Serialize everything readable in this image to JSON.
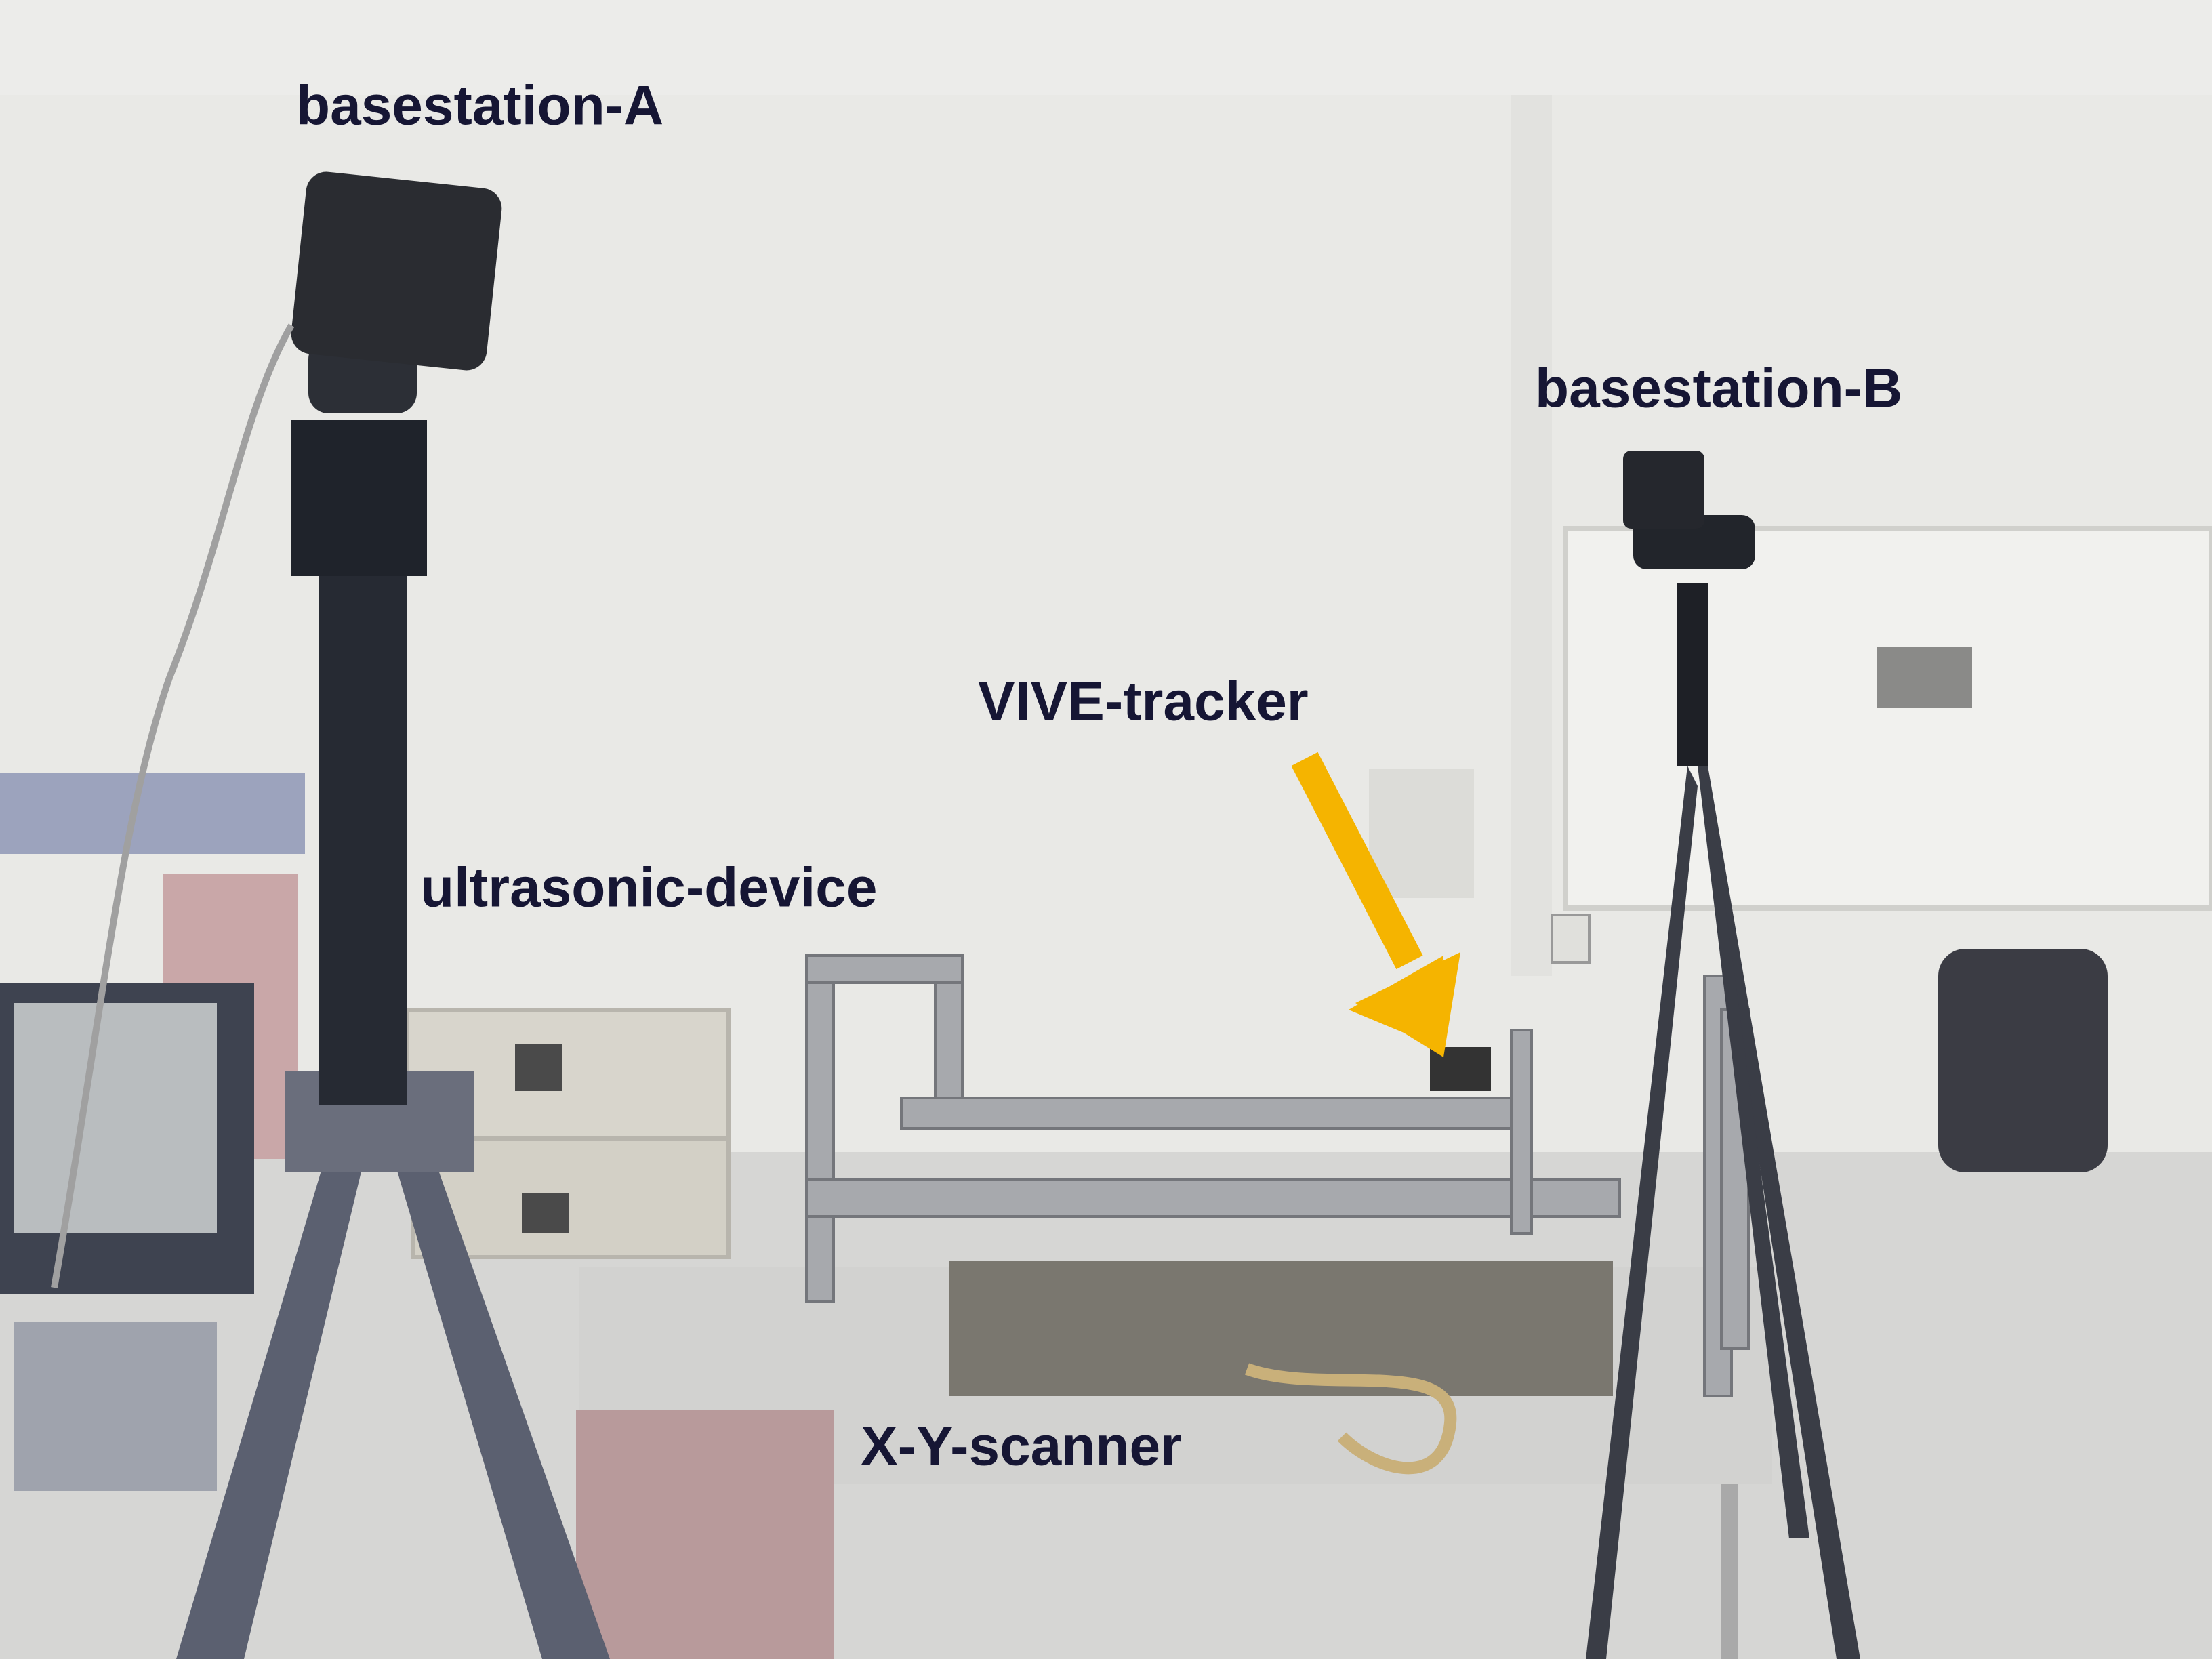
{
  "annotations": [
    {
      "text": "basestation-A"
    },
    {
      "text": "basestation-B"
    },
    {
      "text": "VIVE-tracker"
    },
    {
      "text": "ultrasonic-device"
    },
    {
      "text": "X-Y-scanner"
    }
  ]
}
